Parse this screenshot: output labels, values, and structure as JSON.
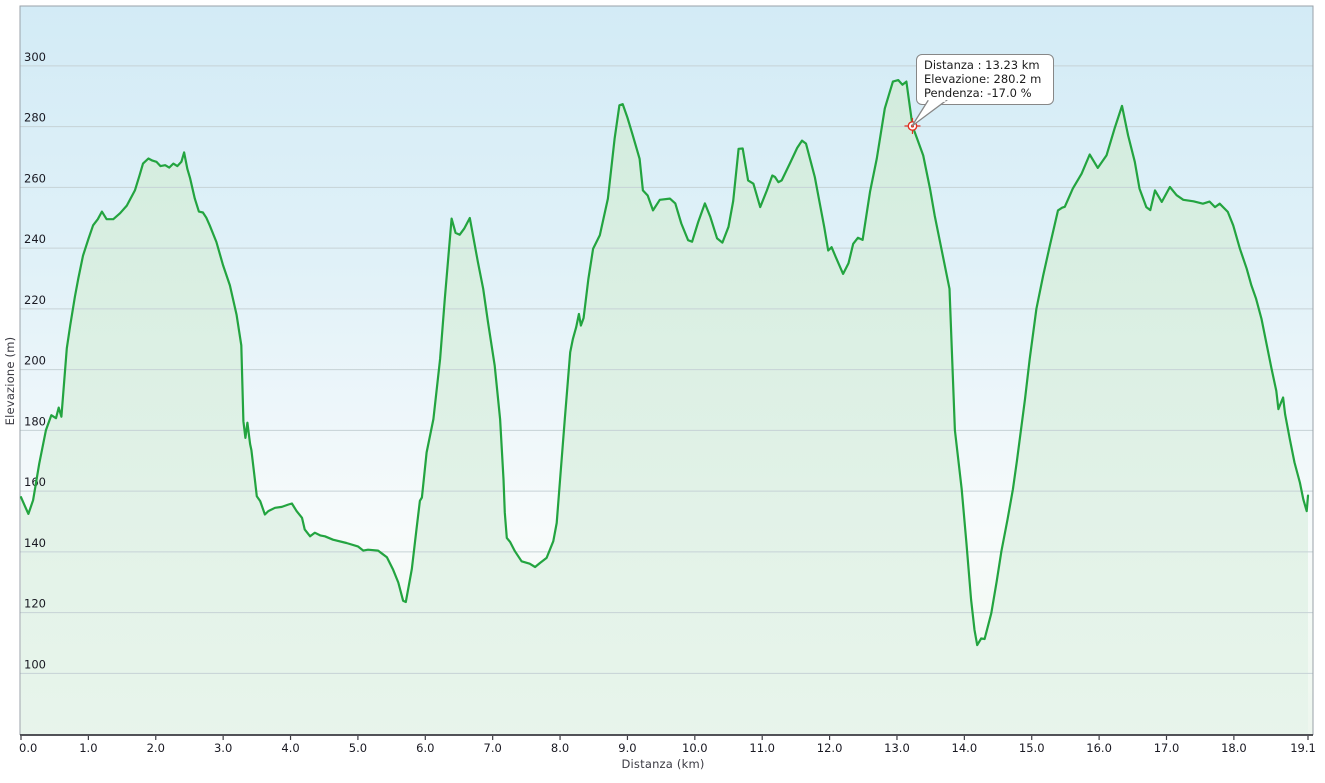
{
  "chart_data": {
    "type": "area",
    "title": "",
    "xlabel": "Distanza  (km)",
    "ylabel": "Elevazione (m)",
    "xlim": [
      0,
      19.1
    ],
    "ylim": [
      79.7,
      319.7
    ],
    "grid": "horizontal",
    "legend_position": "none",
    "line_color": "#23a440",
    "fill_color_top": "rgba(210,236,219,0.9)",
    "fill_color_bottom": "rgba(231,244,235,0.9)",
    "bg_top_color": "#d3ebf6",
    "bg_bottom_color": "#edf6ee",
    "grid_color": "#c6d2d6",
    "marker_color": "#e03222",
    "y_ticks": [
      100,
      120,
      140,
      160,
      180,
      200,
      220,
      240,
      260,
      280,
      300
    ],
    "x_ticks": [
      {
        "label": "0.0",
        "km": 0
      },
      {
        "label": "1.0",
        "km": 1
      },
      {
        "label": "2.0",
        "km": 2
      },
      {
        "label": "3.0",
        "km": 3
      },
      {
        "label": "4.0",
        "km": 4
      },
      {
        "label": "5.0",
        "km": 5
      },
      {
        "label": "6.0",
        "km": 6
      },
      {
        "label": "7.0",
        "km": 7
      },
      {
        "label": "8.0",
        "km": 8
      },
      {
        "label": "9.0",
        "km": 9
      },
      {
        "label": "10.0",
        "km": 10
      },
      {
        "label": "11.0",
        "km": 11
      },
      {
        "label": "12.0",
        "km": 12
      },
      {
        "label": "13.0",
        "km": 13
      },
      {
        "label": "14.0",
        "km": 14
      },
      {
        "label": "15.0",
        "km": 15
      },
      {
        "label": "16.0",
        "km": 16
      },
      {
        "label": "17.0",
        "km": 17
      },
      {
        "label": "18.0",
        "km": 18
      },
      {
        "label": "19.1",
        "km": 19.1
      }
    ],
    "marker": {
      "km": 13.23,
      "elev": 280.2
    },
    "series": [
      {
        "name": "elevation-profile",
        "points": [
          [
            0.0,
            158
          ],
          [
            0.06,
            155
          ],
          [
            0.11,
            152.5
          ],
          [
            0.18,
            157
          ],
          [
            0.27,
            169
          ],
          [
            0.37,
            180
          ],
          [
            0.45,
            185
          ],
          [
            0.52,
            184
          ],
          [
            0.56,
            187.5
          ],
          [
            0.6,
            184.5
          ],
          [
            0.68,
            207
          ],
          [
            0.73,
            214.5
          ],
          [
            0.8,
            224
          ],
          [
            0.85,
            230
          ],
          [
            0.92,
            237.5
          ],
          [
            1.0,
            243
          ],
          [
            1.07,
            247.5
          ],
          [
            1.14,
            249.5
          ],
          [
            1.2,
            252
          ],
          [
            1.27,
            249.5
          ],
          [
            1.37,
            249.5
          ],
          [
            1.47,
            251.5
          ],
          [
            1.57,
            254
          ],
          [
            1.69,
            259
          ],
          [
            1.76,
            264
          ],
          [
            1.81,
            267.8
          ],
          [
            1.89,
            269.5
          ],
          [
            1.95,
            268.8
          ],
          [
            2.01,
            268.4
          ],
          [
            2.07,
            267
          ],
          [
            2.14,
            267.3
          ],
          [
            2.2,
            266.5
          ],
          [
            2.26,
            267.8
          ],
          [
            2.32,
            267
          ],
          [
            2.38,
            268.4
          ],
          [
            2.42,
            271.5
          ],
          [
            2.47,
            266
          ],
          [
            2.51,
            263
          ],
          [
            2.58,
            256.3
          ],
          [
            2.64,
            252
          ],
          [
            2.7,
            251.7
          ],
          [
            2.75,
            250
          ],
          [
            2.8,
            247.5
          ],
          [
            2.9,
            242
          ],
          [
            3.0,
            234.3
          ],
          [
            3.1,
            227.7
          ],
          [
            3.2,
            218
          ],
          [
            3.27,
            208
          ],
          [
            3.3,
            183
          ],
          [
            3.33,
            177.5
          ],
          [
            3.36,
            182.5
          ],
          [
            3.4,
            175.5
          ],
          [
            3.42,
            173.5
          ],
          [
            3.47,
            164
          ],
          [
            3.5,
            158.3
          ],
          [
            3.55,
            156.7
          ],
          [
            3.62,
            152.3
          ],
          [
            3.67,
            153.4
          ],
          [
            3.77,
            154.5
          ],
          [
            3.87,
            154.8
          ],
          [
            3.97,
            155.6
          ],
          [
            4.02,
            155.9
          ],
          [
            4.09,
            153.4
          ],
          [
            4.17,
            151.2
          ],
          [
            4.21,
            147.4
          ],
          [
            4.29,
            145.1
          ],
          [
            4.36,
            146.3
          ],
          [
            4.44,
            145.4
          ],
          [
            4.51,
            145.1
          ],
          [
            4.63,
            144
          ],
          [
            4.83,
            142.9
          ],
          [
            5.0,
            141.8
          ],
          [
            5.08,
            140.4
          ],
          [
            5.15,
            140.7
          ],
          [
            5.3,
            140.4
          ],
          [
            5.43,
            138.2
          ],
          [
            5.52,
            134.3
          ],
          [
            5.6,
            129.9
          ],
          [
            5.67,
            123.9
          ],
          [
            5.71,
            123.5
          ],
          [
            5.8,
            134.3
          ],
          [
            5.87,
            147.5
          ],
          [
            5.92,
            156.8
          ],
          [
            5.95,
            157.9
          ],
          [
            6.02,
            172.7
          ],
          [
            6.12,
            183.7
          ],
          [
            6.22,
            203.5
          ],
          [
            6.29,
            223.3
          ],
          [
            6.39,
            249.7
          ],
          [
            6.45,
            245
          ],
          [
            6.51,
            244.4
          ],
          [
            6.58,
            246.5
          ],
          [
            6.66,
            249.9
          ],
          [
            6.78,
            235.4
          ],
          [
            6.86,
            226.6
          ],
          [
            6.93,
            215.6
          ],
          [
            7.03,
            201.3
          ],
          [
            7.11,
            183.7
          ],
          [
            7.16,
            163.9
          ],
          [
            7.18,
            152.9
          ],
          [
            7.21,
            144.6
          ],
          [
            7.26,
            143.2
          ],
          [
            7.33,
            140.2
          ],
          [
            7.43,
            136.9
          ],
          [
            7.55,
            136.1
          ],
          [
            7.63,
            135
          ],
          [
            7.7,
            136.3
          ],
          [
            7.8,
            138
          ],
          [
            7.9,
            143.5
          ],
          [
            7.95,
            149.5
          ],
          [
            8.0,
            163.9
          ],
          [
            8.07,
            183.7
          ],
          [
            8.15,
            205.7
          ],
          [
            8.19,
            210.1
          ],
          [
            8.24,
            214
          ],
          [
            8.28,
            218.3
          ],
          [
            8.31,
            214.5
          ],
          [
            8.35,
            217
          ],
          [
            8.42,
            229.9
          ],
          [
            8.49,
            239.8
          ],
          [
            8.59,
            244.2
          ],
          [
            8.71,
            256.3
          ],
          [
            8.81,
            276
          ],
          [
            8.88,
            287
          ],
          [
            8.93,
            287.4
          ],
          [
            9.0,
            283
          ],
          [
            9.08,
            277.1
          ],
          [
            9.18,
            269.4
          ],
          [
            9.23,
            259
          ],
          [
            9.3,
            257.3
          ],
          [
            9.38,
            252.4
          ],
          [
            9.48,
            255.9
          ],
          [
            9.63,
            256.3
          ],
          [
            9.71,
            254.7
          ],
          [
            9.8,
            248.1
          ],
          [
            9.9,
            242.6
          ],
          [
            9.96,
            242.1
          ],
          [
            10.05,
            248.6
          ],
          [
            10.15,
            254.7
          ],
          [
            10.23,
            250.3
          ],
          [
            10.33,
            243.2
          ],
          [
            10.41,
            241.8
          ],
          [
            10.5,
            247
          ],
          [
            10.57,
            255.5
          ],
          [
            10.65,
            272.7
          ],
          [
            10.71,
            272.8
          ],
          [
            10.79,
            262.3
          ],
          [
            10.87,
            261.2
          ],
          [
            10.97,
            253.5
          ],
          [
            11.07,
            259
          ],
          [
            11.15,
            263.9
          ],
          [
            11.19,
            263.4
          ],
          [
            11.24,
            261.7
          ],
          [
            11.29,
            262.3
          ],
          [
            11.41,
            267.8
          ],
          [
            11.52,
            273
          ],
          [
            11.59,
            275.4
          ],
          [
            11.65,
            274.4
          ],
          [
            11.71,
            269.4
          ],
          [
            11.78,
            263.4
          ],
          [
            11.85,
            255.2
          ],
          [
            11.92,
            247
          ],
          [
            11.98,
            239.2
          ],
          [
            12.03,
            240.3
          ],
          [
            12.09,
            237.1
          ],
          [
            12.2,
            231.5
          ],
          [
            12.28,
            235
          ],
          [
            12.35,
            241.4
          ],
          [
            12.42,
            243.4
          ],
          [
            12.49,
            242.7
          ],
          [
            12.6,
            258.5
          ],
          [
            12.7,
            269.5
          ],
          [
            12.82,
            286
          ],
          [
            12.94,
            294.8
          ],
          [
            13.02,
            295.3
          ],
          [
            13.08,
            293.8
          ],
          [
            13.14,
            294.8
          ],
          [
            13.23,
            280.2
          ],
          [
            13.39,
            270.5
          ],
          [
            13.49,
            259.6
          ],
          [
            13.56,
            250.7
          ],
          [
            13.66,
            239.8
          ],
          [
            13.78,
            226.6
          ],
          [
            13.86,
            180
          ],
          [
            13.96,
            160.6
          ],
          [
            14.03,
            143
          ],
          [
            14.1,
            124.2
          ],
          [
            14.15,
            114.3
          ],
          [
            14.19,
            109.3
          ],
          [
            14.25,
            111.5
          ],
          [
            14.3,
            111.3
          ],
          [
            14.4,
            119.8
          ],
          [
            14.48,
            130.3
          ],
          [
            14.55,
            140.2
          ],
          [
            14.64,
            150.6
          ],
          [
            14.72,
            160.6
          ],
          [
            14.78,
            169.9
          ],
          [
            14.9,
            190.3
          ],
          [
            14.97,
            203.5
          ],
          [
            15.07,
            220
          ],
          [
            15.17,
            231
          ],
          [
            15.27,
            240.9
          ],
          [
            15.39,
            252.4
          ],
          [
            15.45,
            253.3
          ],
          [
            15.49,
            253.6
          ],
          [
            15.61,
            259.6
          ],
          [
            15.74,
            264.5
          ],
          [
            15.86,
            270.8
          ],
          [
            15.98,
            266.4
          ],
          [
            16.11,
            270.5
          ],
          [
            16.23,
            279.4
          ],
          [
            16.34,
            286.8
          ],
          [
            16.43,
            277.1
          ],
          [
            16.53,
            268.4
          ],
          [
            16.6,
            259.6
          ],
          [
            16.7,
            253.5
          ],
          [
            16.76,
            252.5
          ],
          [
            16.83,
            259
          ],
          [
            16.93,
            255.2
          ],
          [
            17.05,
            260.1
          ],
          [
            17.15,
            257.4
          ],
          [
            17.25,
            255.9
          ],
          [
            17.4,
            255.4
          ],
          [
            17.54,
            254.6
          ],
          [
            17.64,
            255.3
          ],
          [
            17.72,
            253.5
          ],
          [
            17.79,
            254.6
          ],
          [
            17.91,
            251.9
          ],
          [
            17.99,
            247.5
          ],
          [
            18.09,
            239.8
          ],
          [
            18.19,
            233.2
          ],
          [
            18.26,
            227.7
          ],
          [
            18.33,
            223.3
          ],
          [
            18.41,
            216.7
          ],
          [
            18.56,
            200.2
          ],
          [
            18.63,
            193
          ],
          [
            18.66,
            187
          ],
          [
            18.73,
            190.8
          ],
          [
            18.76,
            185.3
          ],
          [
            18.83,
            177.1
          ],
          [
            18.9,
            169.4
          ],
          [
            18.98,
            162.8
          ],
          [
            19.03,
            157.3
          ],
          [
            19.08,
            153.4
          ],
          [
            19.1,
            158.5
          ]
        ]
      }
    ]
  },
  "tooltip": {
    "lines": [
      "Distanza  : 13.23 km",
      "Elevazione: 280.2 m",
      "Pendenza: -17.0 %"
    ],
    "distance_value": "13.23 km",
    "elevation_value": "280.2 m",
    "slope_value": "-17.0 %"
  }
}
